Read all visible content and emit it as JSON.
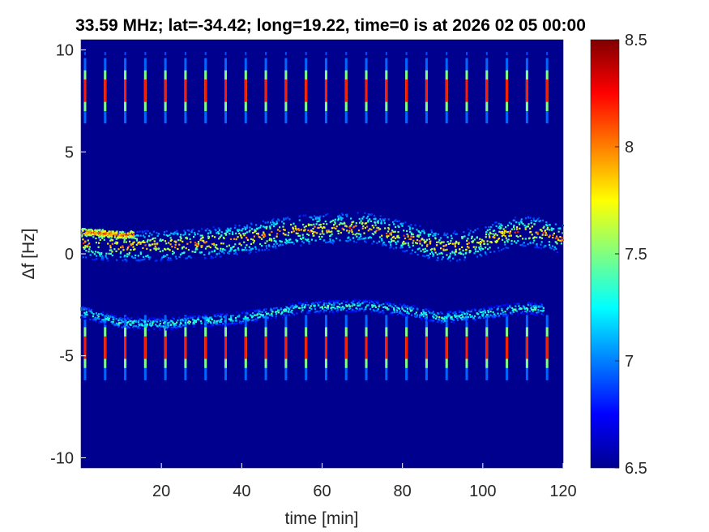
{
  "chart_data": {
    "type": "heatmap",
    "title": "33.59 MHz;  lat=-34.42; long=19.22, time=0 is at 2026 02 05 00:00",
    "xlabel": "time [min]",
    "ylabel": "Δf [Hz]",
    "xlim": [
      0,
      120
    ],
    "ylim": [
      -10.5,
      10.5
    ],
    "x_ticks": [
      20,
      40,
      60,
      80,
      100,
      120
    ],
    "y_ticks": [
      -10,
      -5,
      0,
      5,
      10
    ],
    "colorbar": {
      "range": [
        6.5,
        8.5
      ],
      "ticks": [
        6.5,
        7,
        7.5,
        8,
        8.5
      ],
      "colormap": "jet"
    },
    "background_value": 6.5,
    "features": {
      "periodic_pulses": {
        "period_min": 5,
        "first_min": 1,
        "center_upper_hz": 8.0,
        "center_lower_hz": -4.6,
        "peak_value": 8.2
      },
      "drifting_trace_main": [
        [
          0,
          0.55
        ],
        [
          10,
          0.4
        ],
        [
          20,
          0.45
        ],
        [
          30,
          0.55
        ],
        [
          40,
          0.75
        ],
        [
          50,
          1.1
        ],
        [
          60,
          1.25
        ],
        [
          70,
          1.35
        ],
        [
          75,
          1.15
        ],
        [
          80,
          0.9
        ],
        [
          85,
          0.6
        ],
        [
          90,
          0.35
        ],
        [
          95,
          0.45
        ],
        [
          100,
          0.65
        ],
        [
          105,
          1.0
        ],
        [
          110,
          1.15
        ],
        [
          115,
          1.05
        ],
        [
          120,
          0.75
        ]
      ],
      "drifting_trace_short": [
        [
          0,
          1.1
        ],
        [
          5,
          1.05
        ],
        [
          10,
          0.95
        ],
        [
          13,
          1.0
        ]
      ],
      "lower_trace": [
        [
          0,
          -2.8
        ],
        [
          10,
          -3.35
        ],
        [
          20,
          -3.4
        ],
        [
          40,
          -3.1
        ],
        [
          55,
          -2.6
        ],
        [
          70,
          -2.5
        ],
        [
          80,
          -2.7
        ],
        [
          90,
          -3.1
        ],
        [
          100,
          -2.9
        ],
        [
          110,
          -2.6
        ],
        [
          115,
          -2.7
        ]
      ]
    }
  }
}
